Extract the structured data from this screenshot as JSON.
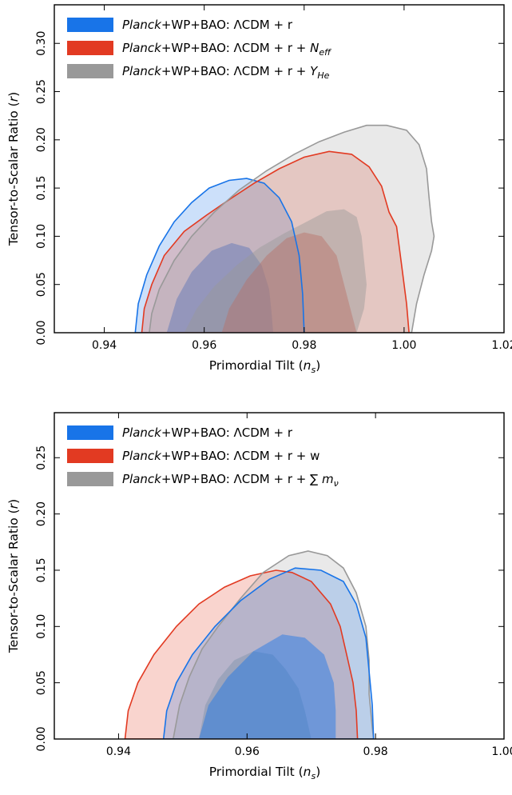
{
  "chart_data": [
    {
      "type": "area",
      "subtype": "2D marginalized contours (68% and 95% confidence regions)",
      "xlabel": "Primordial Tilt (",
      "xlabel_symbol": "n",
      "xlabel_subscript": "s",
      "xlabel_close": ")",
      "ylabel": "Tensor-to-Scalar Ratio (",
      "ylabel_symbol": "r",
      "ylabel_close": ")",
      "xlim": [
        0.93,
        1.02
      ],
      "ylim": [
        0.0,
        0.34
      ],
      "xticks": [
        0.94,
        0.96,
        0.98,
        1.0,
        1.02
      ],
      "xtick_labels": [
        "0.94",
        "0.96",
        "0.98",
        "1.00",
        "1.02"
      ],
      "yticks": [
        0.0,
        0.05,
        0.1,
        0.15,
        0.2,
        0.25,
        0.3
      ],
      "ytick_labels": [
        "0.00",
        "0.05",
        "0.10",
        "0.15",
        "0.20",
        "0.25",
        "0.30"
      ],
      "legend_position": "top-left",
      "legend": [
        {
          "italic": "Planck",
          "text": "+WP+BAO: ΛCDM + r",
          "var": "",
          "var_sub": "",
          "color": "#1874e8"
        },
        {
          "italic": "Planck",
          "text": "+WP+BAO: ΛCDM + r + ",
          "var": "N",
          "var_sub": "eff",
          "color": "#e23a22"
        },
        {
          "italic": "Planck",
          "text": "+WP+BAO: ΛCDM + r + ",
          "var": "Y",
          "var_sub": "He",
          "color": "#999999"
        }
      ],
      "series": [
        {
          "name": "Planck+WP+BAO: ΛCDM + r",
          "color": "#1874e8",
          "contour95": [
            [
              0.9462,
              0
            ],
            [
              0.9468,
              0.03
            ],
            [
              0.9485,
              0.06
            ],
            [
              0.951,
              0.09
            ],
            [
              0.954,
              0.115
            ],
            [
              0.9575,
              0.135
            ],
            [
              0.961,
              0.15
            ],
            [
              0.965,
              0.158
            ],
            [
              0.9685,
              0.16
            ],
            [
              0.972,
              0.155
            ],
            [
              0.975,
              0.14
            ],
            [
              0.9775,
              0.115
            ],
            [
              0.979,
              0.08
            ],
            [
              0.9797,
              0.04
            ],
            [
              0.98,
              0
            ]
          ],
          "contour68": [
            [
              0.9525,
              0
            ],
            [
              0.9545,
              0.035
            ],
            [
              0.9575,
              0.063
            ],
            [
              0.9615,
              0.085
            ],
            [
              0.9655,
              0.093
            ],
            [
              0.969,
              0.088
            ],
            [
              0.9715,
              0.07
            ],
            [
              0.973,
              0.045
            ],
            [
              0.9735,
              0.02
            ],
            [
              0.9738,
              0
            ]
          ]
        },
        {
          "name": "Planck+WP+BAO: ΛCDM + r + Neff",
          "color": "#e23a22",
          "contour95": [
            [
              0.9475,
              0
            ],
            [
              0.948,
              0.025
            ],
            [
              0.9495,
              0.05
            ],
            [
              0.952,
              0.08
            ],
            [
              0.956,
              0.105
            ],
            [
              0.9605,
              0.122
            ],
            [
              0.965,
              0.138
            ],
            [
              0.97,
              0.155
            ],
            [
              0.975,
              0.17
            ],
            [
              0.98,
              0.182
            ],
            [
              0.985,
              0.188
            ],
            [
              0.9895,
              0.185
            ],
            [
              0.993,
              0.172
            ],
            [
              0.9955,
              0.152
            ],
            [
              0.997,
              0.125
            ],
            [
              0.9985,
              0.11
            ],
            [
              0.9995,
              0.07
            ],
            [
              1.0005,
              0.03
            ],
            [
              1.001,
              0
            ]
          ],
          "contour68": [
            [
              0.9635,
              0
            ],
            [
              0.965,
              0.025
            ],
            [
              0.9685,
              0.055
            ],
            [
              0.9725,
              0.08
            ],
            [
              0.9765,
              0.098
            ],
            [
              0.98,
              0.104
            ],
            [
              0.9835,
              0.1
            ],
            [
              0.9865,
              0.08
            ],
            [
              0.988,
              0.05
            ],
            [
              0.9895,
              0.02
            ],
            [
              0.9905,
              0
            ]
          ]
        },
        {
          "name": "Planck+WP+BAO: ΛCDM + r + YHe",
          "color": "#999999",
          "contour95": [
            [
              0.949,
              0
            ],
            [
              0.9495,
              0.02
            ],
            [
              0.951,
              0.045
            ],
            [
              0.954,
              0.075
            ],
            [
              0.9575,
              0.1
            ],
            [
              0.962,
              0.125
            ],
            [
              0.967,
              0.148
            ],
            [
              0.9725,
              0.168
            ],
            [
              0.978,
              0.185
            ],
            [
              0.983,
              0.198
            ],
            [
              0.988,
              0.208
            ],
            [
              0.9925,
              0.215
            ],
            [
              0.9965,
              0.215
            ],
            [
              1.0005,
              0.21
            ],
            [
              1.003,
              0.195
            ],
            [
              1.0045,
              0.17
            ],
            [
              1.005,
              0.14
            ],
            [
              1.0055,
              0.115
            ],
            [
              1.006,
              0.1
            ],
            [
              1.0055,
              0.085
            ],
            [
              1.004,
              0.06
            ],
            [
              1.0025,
              0.03
            ],
            [
              1.0015,
              0
            ]
          ],
          "contour68": [
            [
              0.956,
              0
            ],
            [
              0.9585,
              0.025
            ],
            [
              0.962,
              0.048
            ],
            [
              0.9665,
              0.07
            ],
            [
              0.971,
              0.088
            ],
            [
              0.976,
              0.103
            ],
            [
              0.9805,
              0.115
            ],
            [
              0.9845,
              0.126
            ],
            [
              0.988,
              0.128
            ],
            [
              0.9905,
              0.12
            ],
            [
              0.9915,
              0.1
            ],
            [
              0.992,
              0.075
            ],
            [
              0.9925,
              0.05
            ],
            [
              0.992,
              0.025
            ],
            [
              0.9905,
              0
            ]
          ]
        }
      ]
    },
    {
      "type": "area",
      "subtype": "2D marginalized contours (68% and 95% confidence regions)",
      "xlabel": "Primordial Tilt (",
      "xlabel_symbol": "n",
      "xlabel_subscript": "s",
      "xlabel_close": ")",
      "ylabel": "Tensor-to-Scalar Ratio (",
      "ylabel_symbol": "r",
      "ylabel_close": ")",
      "xlim": [
        0.93,
        1.0
      ],
      "ylim": [
        0.0,
        0.29
      ],
      "xticks": [
        0.94,
        0.96,
        0.98,
        1.0
      ],
      "xtick_labels": [
        "0.94",
        "0.96",
        "0.98",
        "1.00"
      ],
      "yticks": [
        0.0,
        0.05,
        0.1,
        0.15,
        0.2,
        0.25
      ],
      "ytick_labels": [
        "0.00",
        "0.05",
        "0.10",
        "0.15",
        "0.20",
        "0.25"
      ],
      "legend_position": "top-left",
      "legend": [
        {
          "italic": "Planck",
          "text": "+WP+BAO: ΛCDM + r",
          "var": "",
          "var_sub": "",
          "color": "#1874e8"
        },
        {
          "italic": "Planck",
          "text": "+WP+BAO: ΛCDM + r + w",
          "var": "",
          "var_sub": "",
          "color": "#e23a22"
        },
        {
          "italic": "Planck",
          "text": "+WP+BAO: ΛCDM + r + ∑ ",
          "var": "m",
          "var_sub": "ν",
          "color": "#999999"
        }
      ],
      "series": [
        {
          "name": "Planck+WP+BAO: ΛCDM + r + w",
          "color": "#e23a22",
          "contour95": [
            [
              0.941,
              0
            ],
            [
              0.9415,
              0.025
            ],
            [
              0.943,
              0.05
            ],
            [
              0.9455,
              0.075
            ],
            [
              0.949,
              0.1
            ],
            [
              0.9525,
              0.12
            ],
            [
              0.9565,
              0.135
            ],
            [
              0.9605,
              0.145
            ],
            [
              0.9645,
              0.15
            ],
            [
              0.967,
              0.148
            ],
            [
              0.97,
              0.14
            ],
            [
              0.973,
              0.12
            ],
            [
              0.9745,
              0.1
            ],
            [
              0.9755,
              0.075
            ],
            [
              0.9765,
              0.05
            ],
            [
              0.977,
              0.025
            ],
            [
              0.9772,
              0
            ]
          ],
          "contour68": []
        },
        {
          "name": "Planck+WP+BAO: ΛCDM + r + ∑mν",
          "color": "#999999",
          "contour95": [
            [
              0.9485,
              0
            ],
            [
              0.9495,
              0.03
            ],
            [
              0.951,
              0.055
            ],
            [
              0.953,
              0.08
            ],
            [
              0.9555,
              0.1
            ],
            [
              0.959,
              0.125
            ],
            [
              0.9625,
              0.148
            ],
            [
              0.9665,
              0.163
            ],
            [
              0.9695,
              0.167
            ],
            [
              0.9725,
              0.163
            ],
            [
              0.975,
              0.152
            ],
            [
              0.977,
              0.13
            ],
            [
              0.9785,
              0.1
            ],
            [
              0.979,
              0.07
            ],
            [
              0.979,
              0.04
            ],
            [
              0.9795,
              0.01
            ],
            [
              0.9797,
              0
            ]
          ],
          "contour68": [
            [
              0.9525,
              0
            ],
            [
              0.9535,
              0.03
            ],
            [
              0.9555,
              0.053
            ],
            [
              0.958,
              0.07
            ],
            [
              0.961,
              0.078
            ],
            [
              0.964,
              0.075
            ],
            [
              0.966,
              0.062
            ],
            [
              0.968,
              0.045
            ],
            [
              0.969,
              0.025
            ],
            [
              0.97,
              0
            ]
          ]
        },
        {
          "name": "Planck+WP+BAO: ΛCDM + r",
          "color": "#1874e8",
          "contour95": [
            [
              0.947,
              0
            ],
            [
              0.9475,
              0.025
            ],
            [
              0.949,
              0.05
            ],
            [
              0.9515,
              0.075
            ],
            [
              0.955,
              0.1
            ],
            [
              0.959,
              0.123
            ],
            [
              0.9635,
              0.142
            ],
            [
              0.9675,
              0.152
            ],
            [
              0.9715,
              0.15
            ],
            [
              0.975,
              0.14
            ],
            [
              0.977,
              0.12
            ],
            [
              0.9785,
              0.09
            ],
            [
              0.979,
              0.06
            ],
            [
              0.9795,
              0.03
            ],
            [
              0.9797,
              0
            ]
          ],
          "contour68": [
            [
              0.9525,
              0
            ],
            [
              0.954,
              0.03
            ],
            [
              0.957,
              0.055
            ],
            [
              0.961,
              0.078
            ],
            [
              0.9655,
              0.093
            ],
            [
              0.969,
              0.09
            ],
            [
              0.972,
              0.075
            ],
            [
              0.9735,
              0.05
            ],
            [
              0.9738,
              0.025
            ],
            [
              0.9738,
              0
            ]
          ]
        }
      ]
    }
  ]
}
